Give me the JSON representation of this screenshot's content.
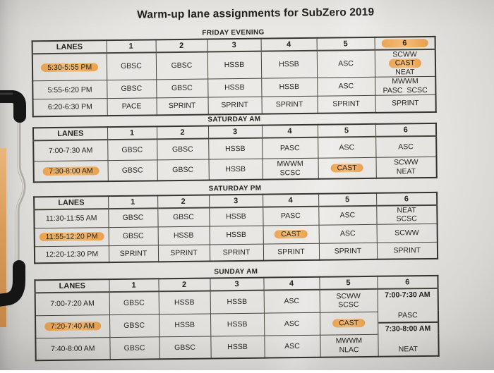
{
  "title": "Warm-up lane assignments for SubZero 2019",
  "lanes_header": "LANES",
  "colors": {
    "highlighter": "#f1b066",
    "clipboard_board": "#dfa05c",
    "clip_black": "#161616",
    "paper": "#e8e6e3"
  },
  "tables": [
    {
      "label": "FRIDAY EVENING",
      "columns": [
        "1",
        "2",
        "3",
        "4",
        "5",
        "6"
      ],
      "highlighted_column": "6",
      "rows": [
        {
          "time": "5:30-5:55 PM",
          "time_highlighted": true,
          "cells": [
            [
              [
                "GBSC"
              ]
            ],
            [
              [
                "GBSC"
              ]
            ],
            [
              [
                "HSSB"
              ]
            ],
            [
              [
                "HSSB"
              ]
            ],
            [
              [
                "ASC"
              ]
            ],
            [
              [
                "SCWW"
              ],
              [
                {
                  "t": "CAST",
                  "hl": true
                },
                "NEAT"
              ]
            ]
          ]
        },
        {
          "time": "5:55-6:20 PM",
          "time_highlighted": false,
          "cells": [
            [
              [
                "GBSC"
              ]
            ],
            [
              [
                "GBSC"
              ]
            ],
            [
              [
                "HSSB"
              ]
            ],
            [
              [
                "HSSB"
              ]
            ],
            [
              [
                "ASC"
              ]
            ],
            [
              [
                "MWWM"
              ],
              [
                "PASC",
                "SCSC"
              ]
            ]
          ]
        },
        {
          "time": "6:20-6:30 PM",
          "time_highlighted": false,
          "cells": [
            [
              [
                "PACE"
              ]
            ],
            [
              [
                "SPRINT"
              ]
            ],
            [
              [
                "SPRINT"
              ]
            ],
            [
              [
                "SPRINT"
              ]
            ],
            [
              [
                "SPRINT"
              ]
            ],
            [
              [
                "SPRINT"
              ]
            ]
          ]
        }
      ]
    },
    {
      "label": "SATURDAY AM",
      "columns": [
        "1",
        "2",
        "3",
        "4",
        "5",
        "6"
      ],
      "highlighted_column": null,
      "rows": [
        {
          "time": "7:00-7:30 AM",
          "time_highlighted": false,
          "cells": [
            [
              [
                "GBSC"
              ]
            ],
            [
              [
                "GBSC"
              ]
            ],
            [
              [
                "HSSB"
              ]
            ],
            [
              [
                "PASC"
              ]
            ],
            [
              [
                "ASC"
              ]
            ],
            [
              [
                "ASC"
              ]
            ]
          ]
        },
        {
          "time": "7:30-8:00 AM",
          "time_highlighted": true,
          "cells": [
            [
              [
                "GBSC"
              ]
            ],
            [
              [
                "GBSC"
              ]
            ],
            [
              [
                "HSSB"
              ]
            ],
            [
              [
                "MWWM"
              ],
              [
                "SCSC"
              ]
            ],
            [
              [
                {
                  "t": "CAST",
                  "hl": true
                }
              ]
            ],
            [
              [
                "SCWW"
              ],
              [
                "NEAT"
              ]
            ]
          ]
        }
      ]
    },
    {
      "label": "SATURDAY PM",
      "columns": [
        "1",
        "2",
        "3",
        "4",
        "5",
        "6"
      ],
      "highlighted_column": null,
      "rows": [
        {
          "time": "11:30-11:55 AM",
          "time_highlighted": false,
          "cells": [
            [
              [
                "GBSC"
              ]
            ],
            [
              [
                "GBSC"
              ]
            ],
            [
              [
                "HSSB"
              ]
            ],
            [
              [
                "PASC"
              ]
            ],
            [
              [
                "ASC"
              ]
            ],
            [
              [
                "NEAT"
              ],
              [
                "SCSC"
              ]
            ]
          ]
        },
        {
          "time": "11:55-12:20 PM",
          "time_highlighted": true,
          "cells": [
            [
              [
                "GBSC"
              ]
            ],
            [
              [
                "HSSB"
              ]
            ],
            [
              [
                "HSSB"
              ]
            ],
            [
              [
                {
                  "t": "CAST",
                  "hl": true
                }
              ]
            ],
            [
              [
                "ASC"
              ]
            ],
            [
              [
                "SCWW"
              ]
            ]
          ]
        },
        {
          "time": "12:20-12:30 PM",
          "time_highlighted": false,
          "cells": [
            [
              [
                "SPRINT"
              ]
            ],
            [
              [
                "SPRINT"
              ]
            ],
            [
              [
                "SPRINT"
              ]
            ],
            [
              [
                "SPRINT"
              ]
            ],
            [
              [
                "SPRINT"
              ]
            ],
            [
              [
                "SPRINT"
              ]
            ]
          ]
        }
      ]
    },
    {
      "label": "SUNDAY AM",
      "columns": [
        "1",
        "2",
        "3",
        "4",
        "5",
        "6"
      ],
      "highlighted_column": null,
      "rows": [
        {
          "time": "7:00-7:20 AM",
          "time_highlighted": false,
          "cells": [
            [
              [
                "GBSC"
              ]
            ],
            [
              [
                "HSSB"
              ]
            ],
            [
              [
                "HSSB"
              ]
            ],
            [
              [
                "ASC"
              ]
            ],
            [
              [
                "SCWW"
              ],
              [
                "SCSC"
              ]
            ]
          ]
        },
        {
          "time": "7:20-7:40 AM",
          "time_highlighted": true,
          "cells": [
            [
              [
                "GBSC"
              ]
            ],
            [
              [
                "HSSB"
              ]
            ],
            [
              [
                "HSSB"
              ]
            ],
            [
              [
                "ASC"
              ]
            ],
            [
              [
                {
                  "t": "CAST",
                  "hl": true
                }
              ]
            ]
          ]
        },
        {
          "time": "7:40-8:00 AM",
          "time_highlighted": false,
          "cells": [
            [
              [
                "GBSC"
              ]
            ],
            [
              [
                "GBSC"
              ]
            ],
            [
              [
                "HSSB"
              ]
            ],
            [
              [
                "ASC"
              ]
            ],
            [
              [
                "MWWM"
              ],
              [
                "NLAC"
              ]
            ]
          ]
        }
      ],
      "lane6_column": [
        {
          "time": "7:00-7:30 AM",
          "team": "PASC"
        },
        {
          "time": "7:30-8:00 AM",
          "team": "NEAT"
        }
      ]
    }
  ]
}
